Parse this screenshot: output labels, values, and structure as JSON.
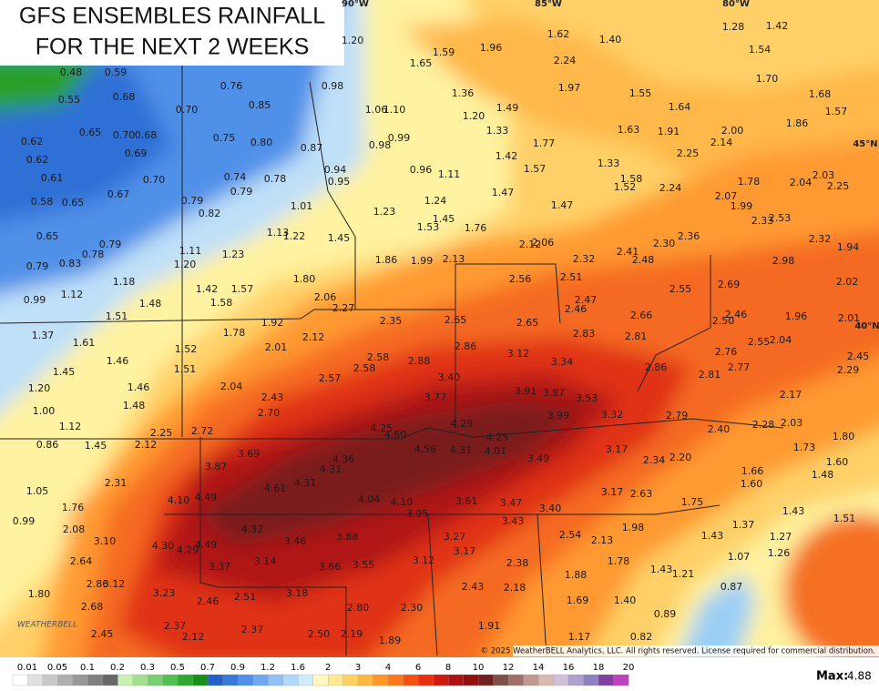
{
  "header": {
    "title_lines": [
      "GFS ENSEMBLES RAINFALL",
      "FOR THE NEXT 2 WEEKS"
    ]
  },
  "map": {
    "grid_labels": [
      "90°W",
      "85°W",
      "80°W",
      "45°N",
      "40°N"
    ],
    "labels": [
      "0.48",
      "0.59",
      "0.55",
      "0.68",
      "0.76",
      "0.70",
      "0.85",
      "0.62",
      "0.65",
      "0.70",
      "0.68",
      "0.75",
      "0.80",
      "0.87",
      "0.62",
      "0.69",
      "0.61",
      "0.70",
      "0.74",
      "0.78",
      "0.79",
      "0.67",
      "0.58",
      "0.65",
      "0.79",
      "0.82",
      "0.65",
      "0.79",
      "0.78",
      "0.79",
      "0.83",
      "0.99",
      "1.12",
      "1.18",
      "1.48",
      "1.51",
      "1.37",
      "1.61",
      "1.46",
      "1.45",
      "1.20",
      "1.46",
      "1.48",
      "1.00",
      "1.12",
      "0.86",
      "1.45",
      "1.05",
      "1.76",
      "0.99",
      "2.08",
      "3.10",
      "2.64",
      "2.86",
      "3.12",
      "1.80",
      "2.68",
      "2.45",
      "1.20",
      "0.98",
      "1.06",
      "1.10",
      "0.99",
      "0.98",
      "0.94",
      "0.95",
      "0.96",
      "1.11",
      "1.01",
      "1.23",
      "1.24",
      "1.45",
      "1.53",
      "1.13",
      "1.22",
      "1.45",
      "1.76",
      "1.11",
      "1.23",
      "1.20",
      "1.42",
      "1.57",
      "1.58",
      "1.80",
      "1.86",
      "1.99",
      "2.13",
      "2.06",
      "2.27",
      "1.92",
      "1.78",
      "2.12",
      "2.35",
      "2.01",
      "1.52",
      "1.51",
      "2.58",
      "2.88",
      "2.58",
      "2.57",
      "2.04",
      "2.43",
      "2.70",
      "3.40",
      "3.77",
      "4.25",
      "4.60",
      "4.56",
      "4.31",
      "4.29",
      "4.25",
      "4.01",
      "2.25",
      "2.72",
      "2.12",
      "3.69",
      "3.87",
      "4.36",
      "4.31",
      "2.31",
      "4.61",
      "4.31",
      "4.10",
      "4.49",
      "4.04",
      "4.10",
      "3.95",
      "3.61",
      "3.47",
      "3.40",
      "4.32",
      "4.30",
      "4.29",
      "4.49",
      "3.88",
      "3.46",
      "3.14",
      "3.37",
      "3.66",
      "3.55",
      "3.12",
      "3.27",
      "3.17",
      "3.43",
      "2.54",
      "2.13",
      "2.38",
      "3.23",
      "2.46",
      "2.51",
      "3.18",
      "2.43",
      "2.18",
      "1.88",
      "2.80",
      "2.30",
      "2.37",
      "2.12",
      "2.37",
      "2.50",
      "2.19",
      "1.89",
      "1.91",
      "1.69",
      "1.40",
      "1.17",
      "0.82",
      "0.89",
      "1.96",
      "1.62",
      "1.40",
      "1.28",
      "1.42",
      "1.54",
      "1.59",
      "1.65",
      "2.24",
      "1.70",
      "1.97",
      "1.36",
      "1.55",
      "1.68",
      "1.49",
      "1.20",
      "1.33",
      "1.63",
      "1.64",
      "1.57",
      "1.86",
      "1.91",
      "2.00",
      "2.14",
      "1.77",
      "1.42",
      "2.25",
      "1.57",
      "1.33",
      "1.58",
      "1.52",
      "2.24",
      "1.47",
      "1.78",
      "2.04",
      "2.03",
      "2.25",
      "2.07",
      "1.99",
      "1.47",
      "2.33",
      "2.53",
      "2.36",
      "2.30",
      "2.12",
      "2.06",
      "2.41",
      "2.48",
      "2.32",
      "2.98",
      "2.32",
      "1.94",
      "2.56",
      "2.51",
      "2.55",
      "2.69",
      "2.02",
      "2.47",
      "2.46",
      "2.66",
      "2.50",
      "2.46",
      "1.96",
      "2.01",
      "2.65",
      "2.65",
      "2.83",
      "2.81",
      "2.86",
      "3.12",
      "3.34",
      "2.86",
      "2.76",
      "2.55",
      "2.04",
      "2.45",
      "2.29",
      "2.81",
      "2.77",
      "3.91",
      "3.87",
      "3.53",
      "2.17",
      "3.99",
      "3.32",
      "2.79",
      "2.40",
      "2.28",
      "2.03",
      "1.80",
      "3.49",
      "3.17",
      "2.34",
      "2.20",
      "1.73",
      "1.66",
      "1.48",
      "1.60",
      "1.60",
      "3.17",
      "2.63",
      "1.75",
      "1.43",
      "1.37",
      "1.51",
      "1.98",
      "1.43",
      "1.27",
      "1.26",
      "1.78",
      "1.07",
      "1.43",
      "1.21",
      "0.87"
    ]
  },
  "logo": "WEATHERBELL",
  "footer": {
    "copyright": "© 2025 WeatherBELL Analytics, LLC. All rights reserved. License required for commercial distribution."
  },
  "legend": {
    "ticks": [
      "0.01",
      "0.05",
      "0.1",
      "0.2",
      "0.3",
      "0.5",
      "0.7",
      "0.9",
      "1.2",
      "1.6",
      "2",
      "3",
      "4",
      "6",
      "8",
      "10",
      "12",
      "14",
      "16",
      "18",
      "20"
    ],
    "max_label": "Max:",
    "max_value": "4.88"
  }
}
